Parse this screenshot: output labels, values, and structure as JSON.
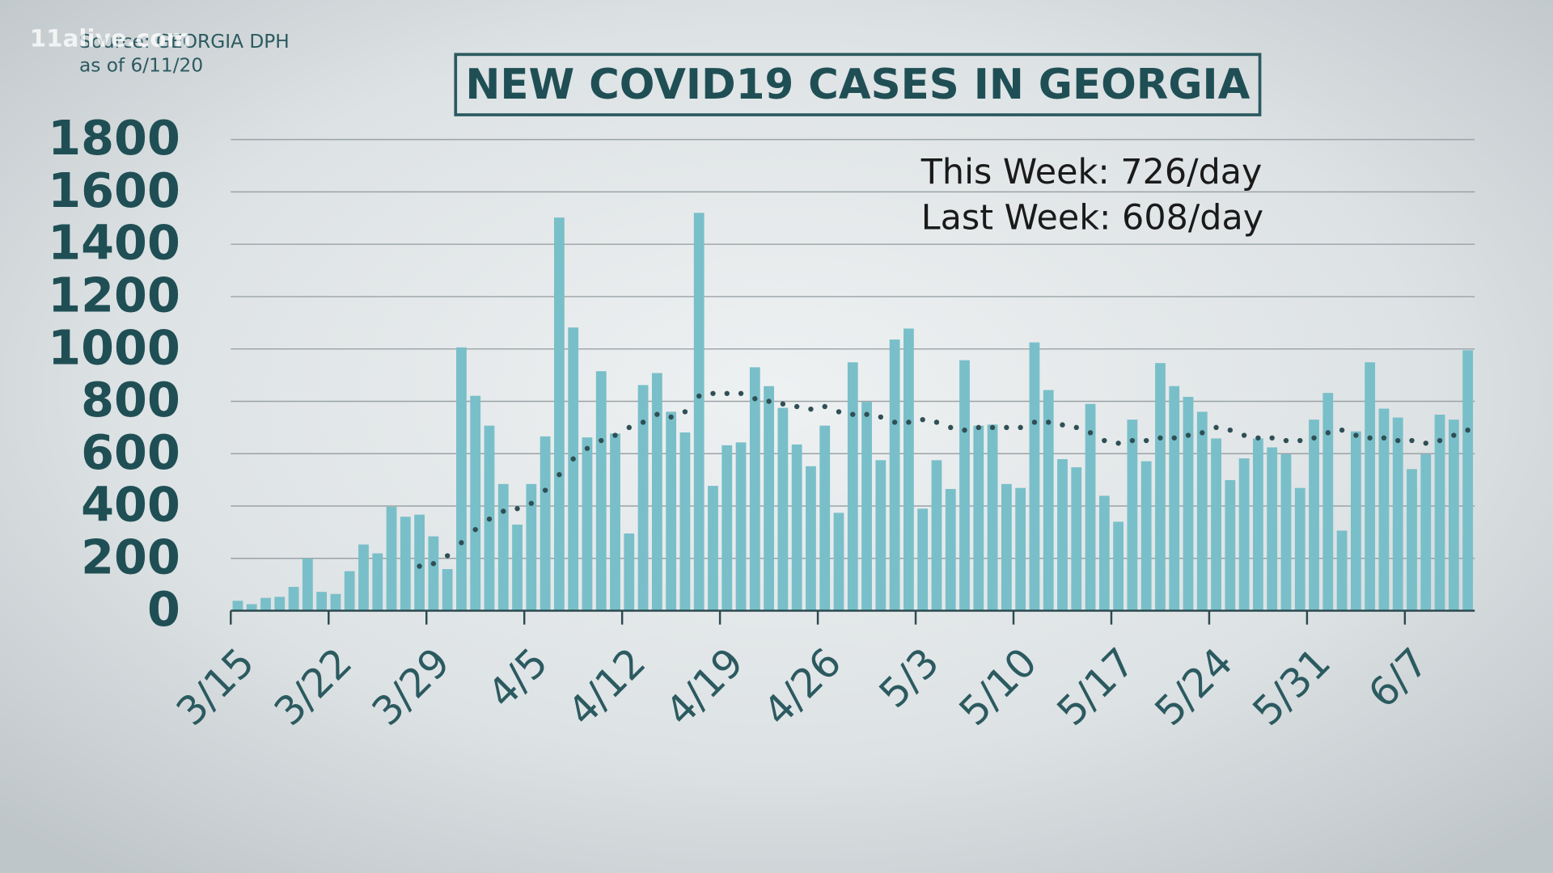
{
  "chart_data": {
    "type": "bar",
    "title": "NEW COVID19 CASES IN GEORGIA",
    "watermark": "11alive.com",
    "source": "Source: GEORGIA DPH",
    "as_of": "as of  6/11/20",
    "annotations": [
      "This Week: 726/day",
      "Last Week: 608/day"
    ],
    "categories": [
      "3/15",
      null,
      null,
      null,
      null,
      null,
      null,
      "3/22",
      null,
      null,
      null,
      null,
      null,
      null,
      "3/29",
      null,
      null,
      null,
      null,
      null,
      null,
      "4/5",
      null,
      null,
      null,
      null,
      null,
      null,
      "4/12",
      null,
      null,
      null,
      null,
      null,
      null,
      "4/19",
      null,
      null,
      null,
      null,
      null,
      null,
      "4/26",
      null,
      null,
      null,
      null,
      null,
      null,
      "5/3",
      null,
      null,
      null,
      null,
      null,
      null,
      "5/10",
      null,
      null,
      null,
      null,
      null,
      null,
      "5/17",
      null,
      null,
      null,
      null,
      null,
      null,
      "5/24",
      null,
      null,
      null,
      null,
      null,
      null,
      "5/31",
      null,
      null,
      null,
      null,
      null,
      null,
      "6/7",
      null,
      null,
      null,
      null
    ],
    "series": [
      {
        "color": "#79bfc9",
        "type": "bar",
        "values": [
          38,
          25,
          49,
          53,
          91,
          200,
          72,
          64,
          151,
          253,
          219,
          397,
          359,
          367,
          284,
          159,
          1006,
          821,
          707,
          484,
          329,
          484,
          666,
          1502,
          1082,
          662,
          915,
          677,
          295,
          862,
          908,
          760,
          681,
          1520,
          477,
          632,
          643,
          930,
          858,
          775,
          635,
          552,
          707,
          374,
          949,
          798,
          575,
          1036,
          1078,
          390,
          575,
          465,
          957,
          707,
          711,
          484,
          469,
          1025,
          843,
          579,
          548,
          790,
          439,
          340,
          730,
          571,
          946,
          858,
          817,
          760,
          658,
          499,
          582,
          658,
          624,
          598,
          469,
          730,
          832,
          306,
          685,
          949,
          772,
          738,
          541,
          598,
          749,
          730,
          995
        ]
      },
      {
        "color": "#2f4f55",
        "type": "dotted",
        "values": [
          null,
          null,
          null,
          null,
          null,
          null,
          null,
          null,
          null,
          null,
          null,
          null,
          null,
          170,
          180,
          210,
          260,
          310,
          350,
          380,
          390,
          410,
          460,
          520,
          580,
          620,
          650,
          670,
          700,
          720,
          750,
          740,
          760,
          820,
          830,
          830,
          830,
          810,
          800,
          790,
          780,
          770,
          780,
          760,
          750,
          750,
          740,
          720,
          720,
          730,
          720,
          700,
          690,
          700,
          700,
          700,
          700,
          720,
          720,
          710,
          700,
          680,
          650,
          640,
          650,
          650,
          660,
          660,
          670,
          680,
          700,
          690,
          670,
          660,
          660,
          650,
          650,
          660,
          680,
          690,
          670,
          660,
          660,
          650,
          650,
          640,
          650,
          670,
          690
        ]
      }
    ],
    "ylim": [
      0,
      1800
    ],
    "yticks": [
      0,
      200,
      400,
      600,
      800,
      1000,
      1200,
      1400,
      1600,
      1800
    ],
    "grid": true
  }
}
